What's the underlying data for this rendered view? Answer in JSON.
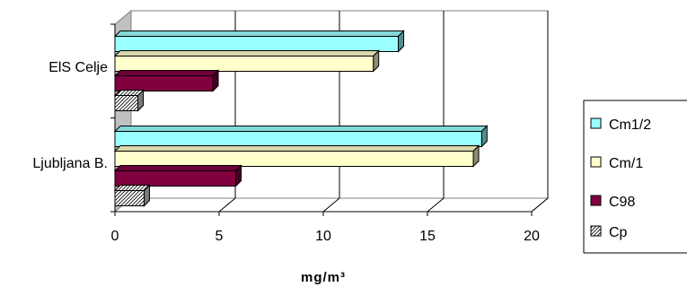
{
  "chart_data": {
    "type": "bar",
    "orientation": "horizontal",
    "style": "3d",
    "categories": [
      "ElS Celje",
      "Ljubljana B."
    ],
    "series": [
      {
        "name": "Cm1/2",
        "values": [
          13.6,
          17.6
        ],
        "color": "#99FFFF",
        "pattern": "solid"
      },
      {
        "name": "Cm/1",
        "values": [
          12.4,
          17.2
        ],
        "color": "#FFFFCC",
        "pattern": "solid"
      },
      {
        "name": "C98",
        "values": [
          4.7,
          5.8
        ],
        "color": "#800040",
        "pattern": "solid"
      },
      {
        "name": "Cp",
        "values": [
          1.1,
          1.4
        ],
        "color": "#FFFFFF",
        "pattern": "hatch"
      }
    ],
    "xlim": [
      0,
      20
    ],
    "xticks": [
      "0",
      "5",
      "10",
      "15",
      "20"
    ],
    "xlabel": "mg/m³",
    "ylabel": "",
    "title": "",
    "grid": "vertical",
    "legend_position": "right"
  }
}
